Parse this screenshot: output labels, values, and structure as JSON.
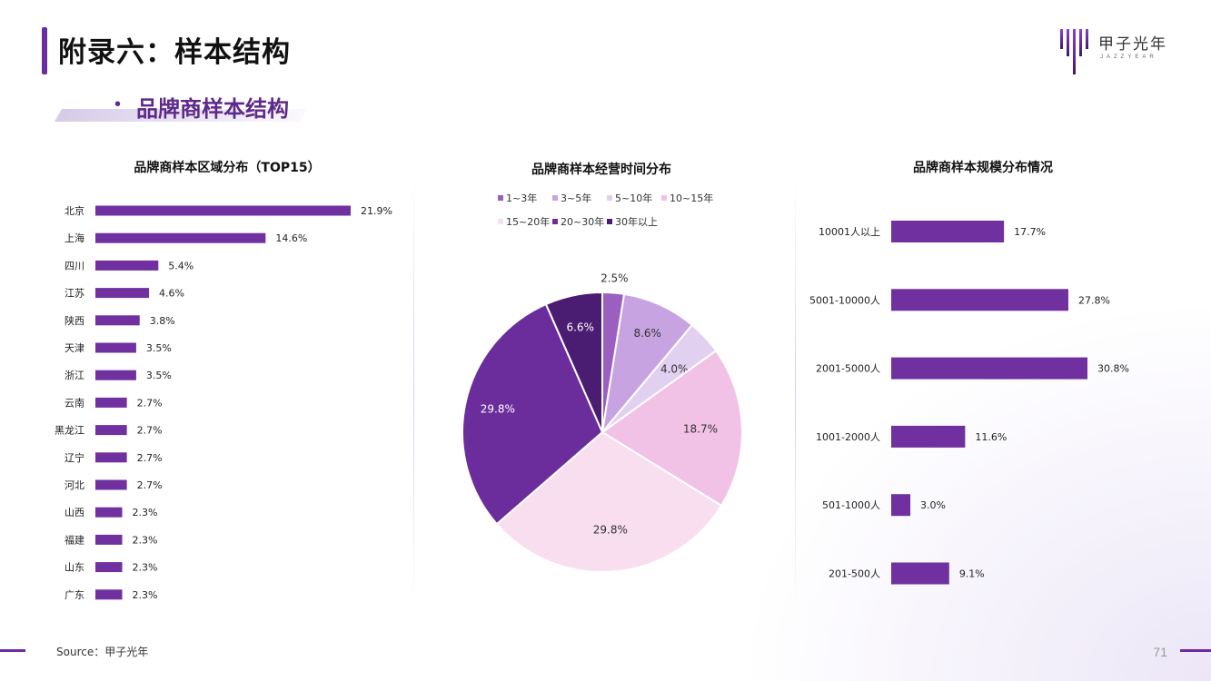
{
  "page": {
    "title": "附录六：样本结构",
    "subtitle": "品牌商样本结构",
    "source": "Source：甲子光年",
    "page_number": "71"
  },
  "logo": {
    "text": "甲子光年",
    "sub": "JAZZYEAR"
  },
  "colors": {
    "accent": "#6a2ca0",
    "bar": "#7030a0",
    "pie": [
      "#9b5fc0",
      "#c8a3e1",
      "#e2d0f0",
      "#f2c2e6",
      "#f9deef",
      "#6b2d9c",
      "#4b1d72"
    ]
  },
  "chart_data": [
    {
      "type": "bar",
      "orientation": "horizontal",
      "title": "品牌商样本区域分布（TOP15）",
      "categories": [
        "北京",
        "上海",
        "四川",
        "江苏",
        "陕西",
        "天津",
        "浙江",
        "云南",
        "黑龙江",
        "辽宁",
        "河北",
        "山西",
        "福建",
        "山东",
        "广东"
      ],
      "values": [
        21.9,
        14.6,
        5.4,
        4.6,
        3.8,
        3.5,
        3.5,
        2.7,
        2.7,
        2.7,
        2.7,
        2.3,
        2.3,
        2.3,
        2.3
      ],
      "labels": [
        "21.9%",
        "14.6%",
        "5.4%",
        "4.6%",
        "3.8%",
        "3.5%",
        "3.5%",
        "2.7%",
        "2.7%",
        "2.7%",
        "2.7%",
        "2.3%",
        "2.3%",
        "2.3%",
        "2.3%"
      ],
      "unit": "%"
    },
    {
      "type": "pie",
      "title": "品牌商样本经营时间分布",
      "categories": [
        "1~3年",
        "3~5年",
        "5~10年",
        "10~15年",
        "15~20年",
        "20~30年",
        "30年以上"
      ],
      "values": [
        2.5,
        8.6,
        4.0,
        18.7,
        29.8,
        29.8,
        6.6
      ],
      "labels": [
        "2.5%",
        "8.6%",
        "4.0%",
        "18.7%",
        "29.8%",
        "29.8%",
        "6.6%"
      ],
      "legend_position": "top"
    },
    {
      "type": "bar",
      "orientation": "horizontal",
      "title": "品牌商样本规模分布情况",
      "categories": [
        "10001人以上",
        "5001-10000人",
        "2001-5000人",
        "1001-2000人",
        "501-1000人",
        "201-500人"
      ],
      "values": [
        17.7,
        27.8,
        30.8,
        11.6,
        3.0,
        9.1
      ],
      "labels": [
        "17.7%",
        "27.8%",
        "30.8%",
        "11.6%",
        "3.0%",
        "9.1%"
      ],
      "unit": "%"
    }
  ]
}
